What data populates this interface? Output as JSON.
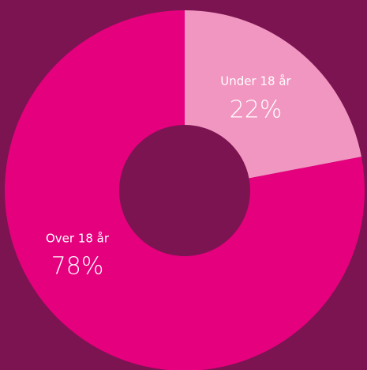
{
  "chart_data": {
    "type": "donut",
    "categories": [
      "Under 18 år",
      "Over 18 år"
    ],
    "values": [
      22,
      78
    ],
    "value_labels": [
      "22%",
      "78%"
    ],
    "colors": [
      "#f196c0",
      "#e5007e"
    ],
    "background": "#7b1451"
  }
}
